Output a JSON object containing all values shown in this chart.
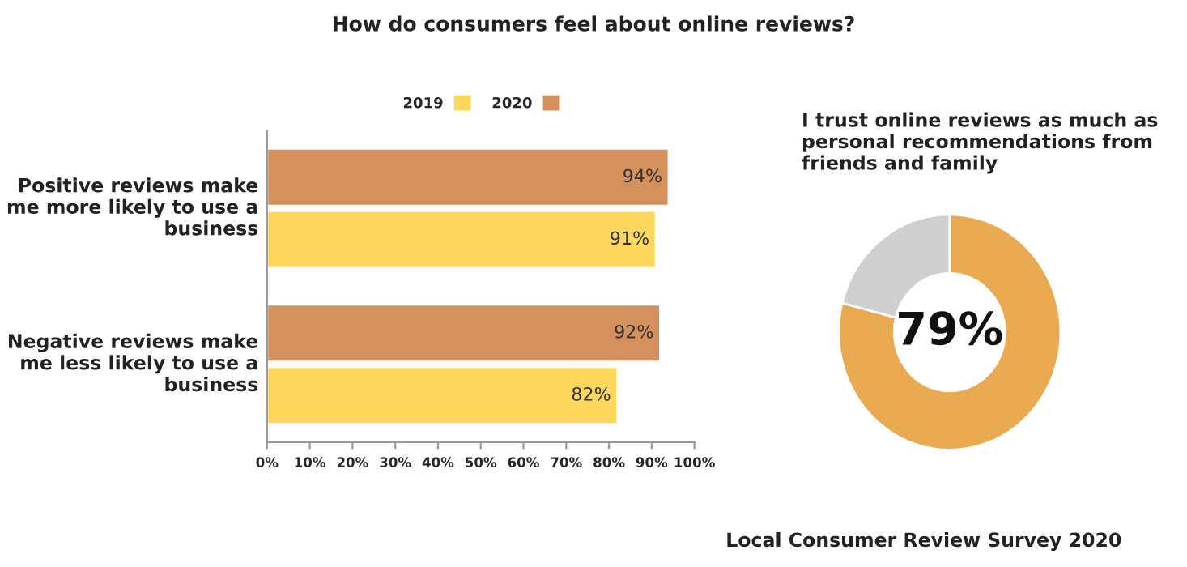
{
  "chart_data": [
    {
      "type": "bar",
      "orientation": "horizontal",
      "title": "How do consumers feel about online reviews?",
      "categories": [
        "Positive reviews make me more likely to use a business",
        "Negative reviews make me less likely to use a business"
      ],
      "series": [
        {
          "name": "2019",
          "color": "#fdd85d",
          "values": [
            91,
            82
          ],
          "value_labels": [
            "91%",
            "82%"
          ]
        },
        {
          "name": "2020",
          "color": "#d4915d",
          "values": [
            94,
            92
          ],
          "value_labels": [
            "94%",
            "92%"
          ]
        }
      ],
      "xlim": [
        0,
        100
      ],
      "xticks": [
        {
          "value": 0,
          "label": "0%"
        },
        {
          "value": 10,
          "label": "10%"
        },
        {
          "value": 20,
          "label": "20%"
        },
        {
          "value": 30,
          "label": "30%"
        },
        {
          "value": 40,
          "label": "40%"
        },
        {
          "value": 50,
          "label": "50%"
        },
        {
          "value": 60,
          "label": "60%"
        },
        {
          "value": 70,
          "label": "70%"
        },
        {
          "value": 80,
          "label": "80%"
        },
        {
          "value": 90,
          "label": "90%"
        },
        {
          "value": 100,
          "label": "100%"
        }
      ],
      "legend": "top",
      "grid": false
    },
    {
      "type": "donut",
      "title": "I trust online reviews as much as personal recommendations from friends and family",
      "categories": [
        null,
        null
      ],
      "values": [
        79,
        21
      ],
      "colors": [
        "#e9aa52",
        "#cfcfcf"
      ],
      "value_labels": [
        "79%",
        null
      ],
      "annotations": [
        "Local Consumer Review Survey 2020"
      ]
    }
  ]
}
